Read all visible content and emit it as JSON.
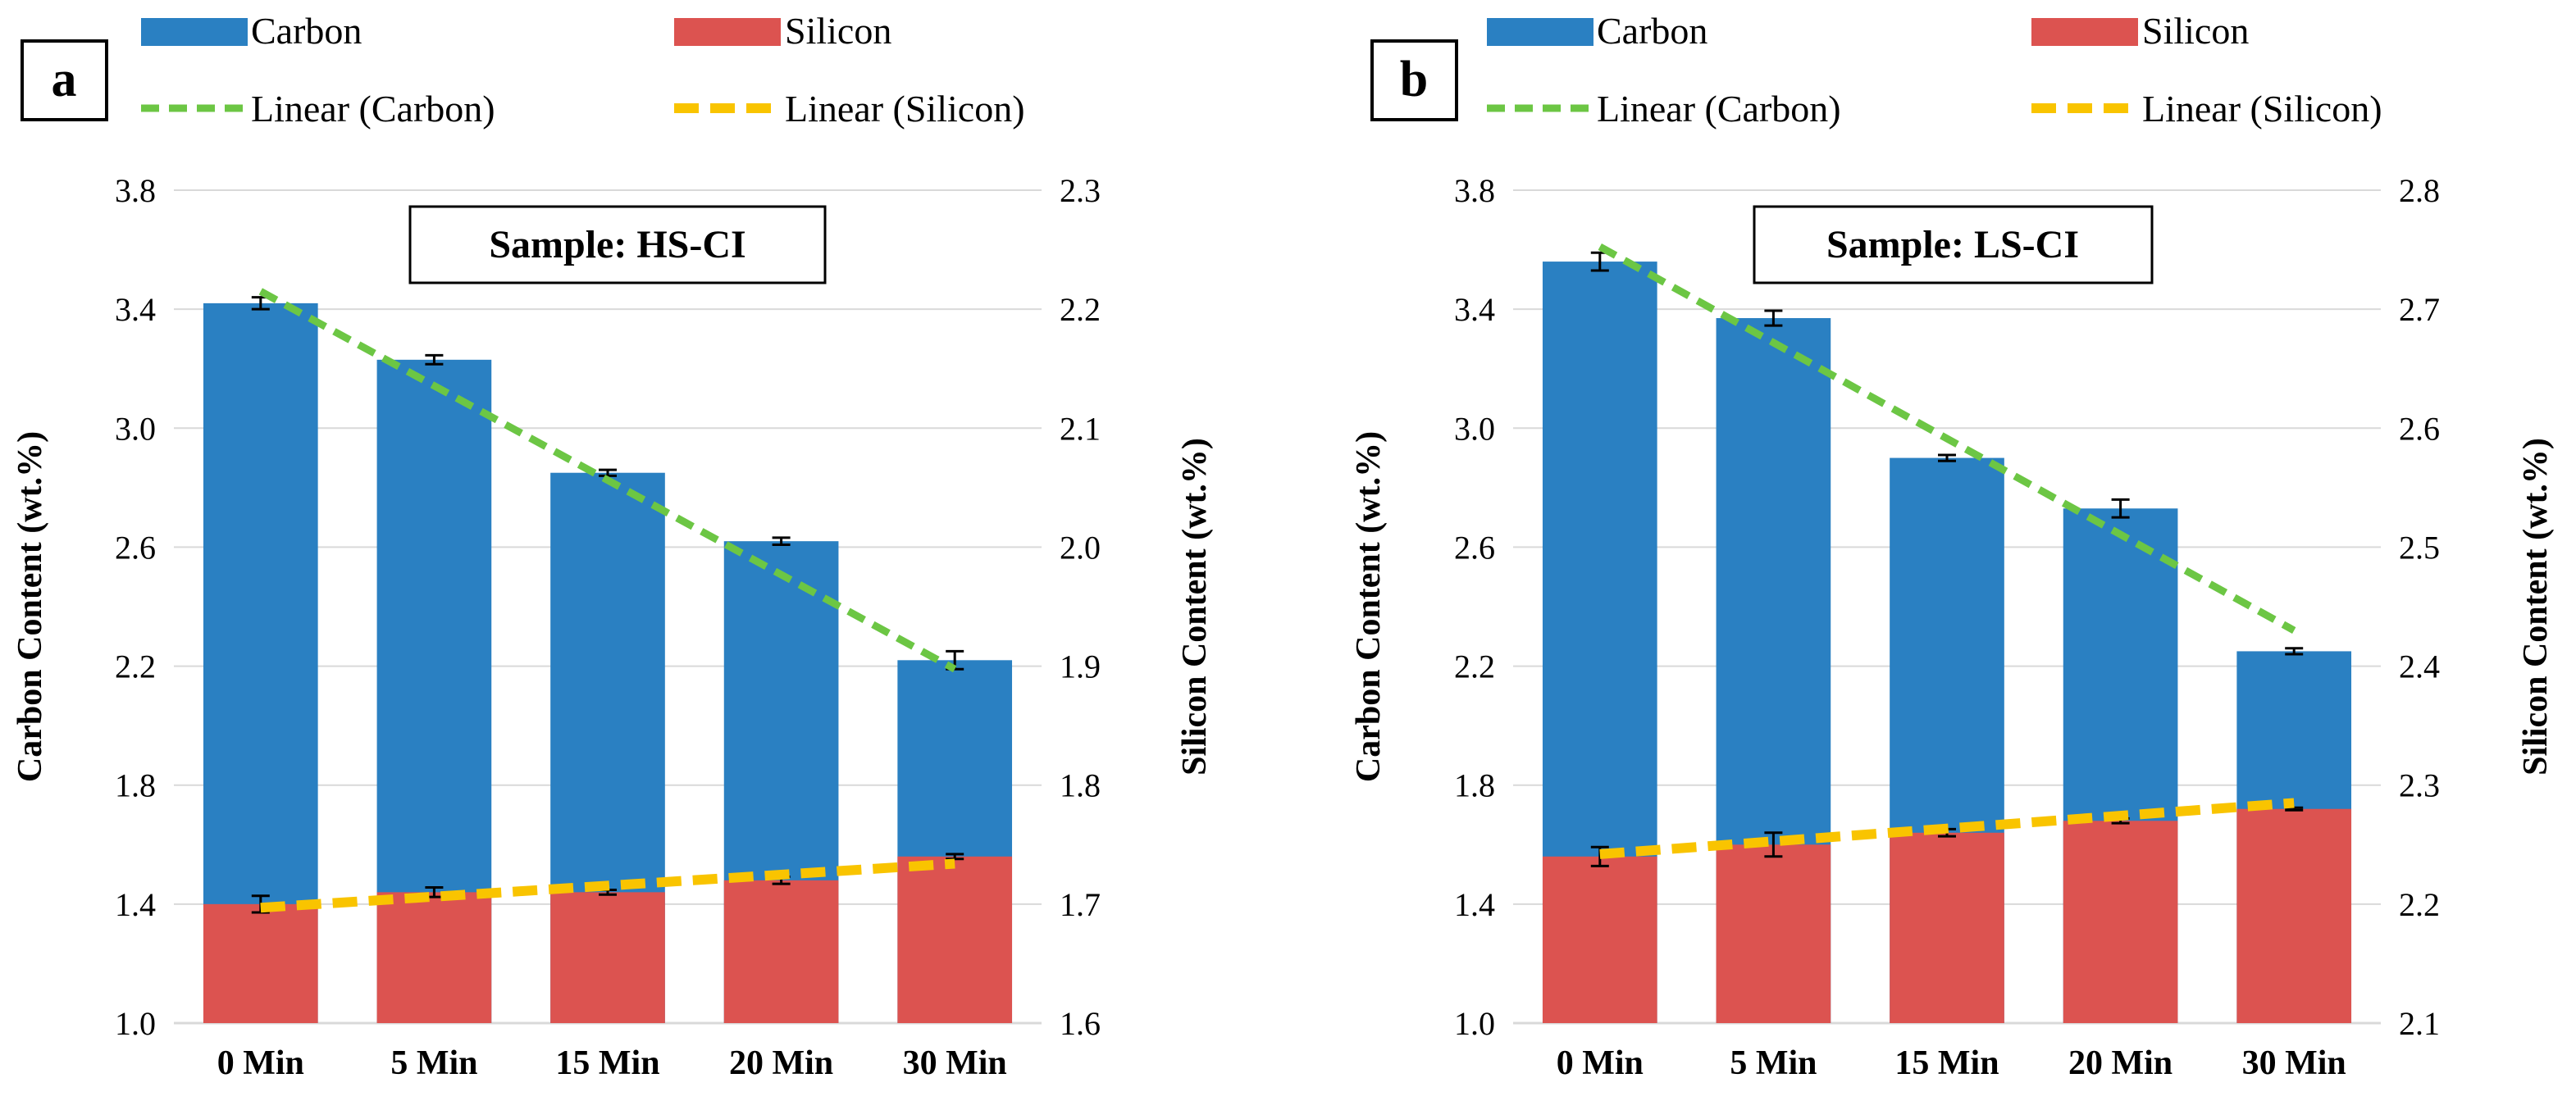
{
  "chart_data": [
    {
      "type": "bar",
      "panel_label": "a",
      "annotation": "Sample: HS-CI",
      "categories": [
        "0 Min",
        "5 Min",
        "15 Min",
        "20 Min",
        "30 Min"
      ],
      "series": [
        {
          "name": "Carbon",
          "axis": "left",
          "values": [
            3.42,
            3.23,
            2.85,
            2.62,
            2.22
          ],
          "errors": [
            0.02,
            0.015,
            0.01,
            0.012,
            0.03
          ]
        },
        {
          "name": "Silicon",
          "axis": "right",
          "values": [
            1.7,
            1.71,
            1.71,
            1.72,
            1.74
          ],
          "errors": [
            0.007,
            0.004,
            0.002,
            0.003,
            0.002
          ]
        }
      ],
      "trendlines": [
        {
          "name": "Linear (Carbon)",
          "axis": "left",
          "start": 3.46,
          "end": 2.19
        },
        {
          "name": "Linear (Silicon)",
          "axis": "right",
          "start": 1.697,
          "end": 1.734
        }
      ],
      "xlabel": "",
      "ylabel": "Carbon Content (wt.%)",
      "y2label": "Silicon Content (wt.%)",
      "ylim": [
        1.0,
        3.8
      ],
      "y2lim": [
        1.6,
        2.3
      ],
      "yticks": [
        "1.0",
        "1.4",
        "1.8",
        "2.2",
        "2.6",
        "3.0",
        "3.4",
        "3.8"
      ],
      "y2ticks": [
        "1.6",
        "1.7",
        "1.8",
        "1.9",
        "2.0",
        "2.1",
        "2.2",
        "2.3"
      ],
      "colors": {
        "Carbon": "#2a80c2",
        "Silicon": "#dc5350",
        "Linear (Carbon)": "#6cc644",
        "Linear (Silicon)": "#f9c400"
      },
      "grid": true,
      "legend": "top"
    },
    {
      "type": "bar",
      "panel_label": "b",
      "annotation": "Sample: LS-CI",
      "categories": [
        "0 Min",
        "5 Min",
        "15 Min",
        "20 Min",
        "30 Min"
      ],
      "series": [
        {
          "name": "Carbon",
          "axis": "left",
          "values": [
            3.56,
            3.37,
            2.9,
            2.73,
            2.25
          ],
          "errors": [
            0.03,
            0.025,
            0.01,
            0.03,
            0.01
          ]
        },
        {
          "name": "Silicon",
          "axis": "right",
          "values": [
            2.24,
            2.25,
            2.26,
            2.27,
            2.28
          ],
          "errors": [
            0.008,
            0.01,
            0.003,
            0.002,
            0.001
          ]
        }
      ],
      "trendlines": [
        {
          "name": "Linear (Carbon)",
          "axis": "left",
          "start": 3.61,
          "end": 2.32
        },
        {
          "name": "Linear (Silicon)",
          "axis": "right",
          "start": 2.242,
          "end": 2.285
        }
      ],
      "xlabel": "",
      "ylabel": "Carbon Content (wt.%)",
      "y2label": "Silicon Content (wt.%)",
      "ylim": [
        1.0,
        3.8
      ],
      "y2lim": [
        2.1,
        2.8
      ],
      "yticks": [
        "1.0",
        "1.4",
        "1.8",
        "2.2",
        "2.6",
        "3.0",
        "3.4",
        "3.8"
      ],
      "y2ticks": [
        "2.1",
        "2.2",
        "2.3",
        "2.4",
        "2.5",
        "2.6",
        "2.7",
        "2.8"
      ],
      "colors": {
        "Carbon": "#2a80c2",
        "Silicon": "#dc5350",
        "Linear (Carbon)": "#6cc644",
        "Linear (Silicon)": "#f9c400"
      },
      "grid": true,
      "legend": "top"
    }
  ]
}
